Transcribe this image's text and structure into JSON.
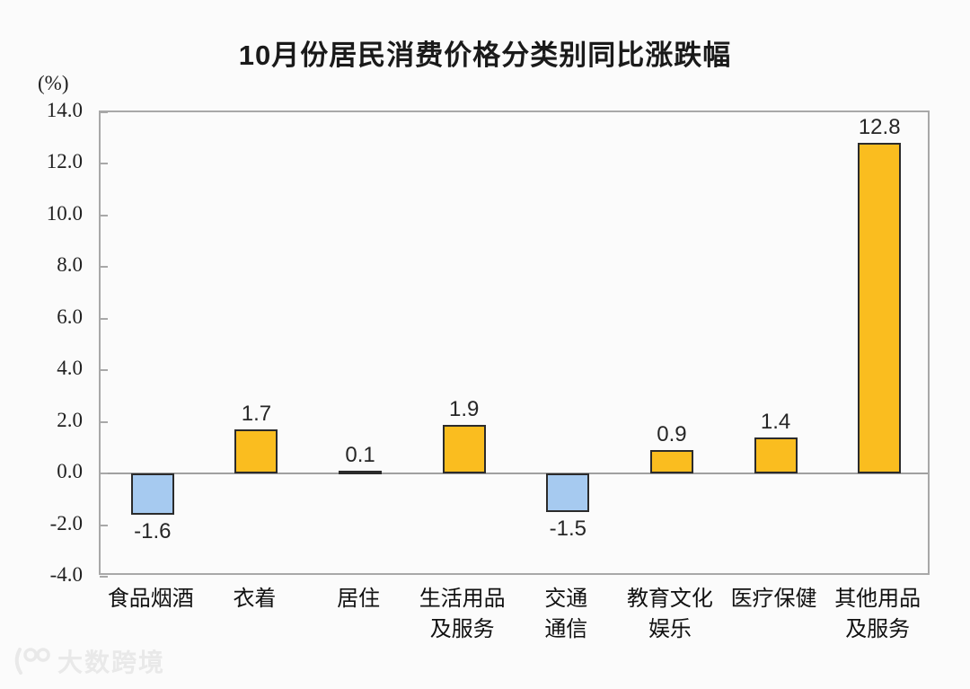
{
  "chart_data": {
    "type": "bar",
    "title": "10月份居民消费价格分类别同比涨跌幅",
    "unit_label": "(%)",
    "categories": [
      "食品烟酒",
      "衣着",
      "居住",
      "生活用品\n及服务",
      "交通\n通信",
      "教育文化\n娱乐",
      "医疗保健",
      "其他用品\n及服务"
    ],
    "values": [
      -1.6,
      1.7,
      0.1,
      1.9,
      -1.5,
      0.9,
      1.4,
      12.8
    ],
    "value_labels": [
      "-1.6",
      "1.7",
      "0.1",
      "1.9",
      "-1.5",
      "0.9",
      "1.4",
      "12.8"
    ],
    "ylim": [
      -4,
      14
    ],
    "ytick_labels": [
      "14.0",
      "12.0",
      "10.0",
      "8.0",
      "6.0",
      "4.0",
      "2.0",
      "0.0",
      "-2.0",
      "-4.0"
    ],
    "grid": false,
    "legend": false,
    "colors": {
      "positive_bar": "#FABD1F",
      "negative_bar": "#A6CAF0",
      "bar_border": "#2B2B2B",
      "axis": "#A8A8A8",
      "text": "#1F1F1F"
    }
  },
  "watermark": {
    "text": "大数跨境",
    "color": "#E9E9E9"
  }
}
